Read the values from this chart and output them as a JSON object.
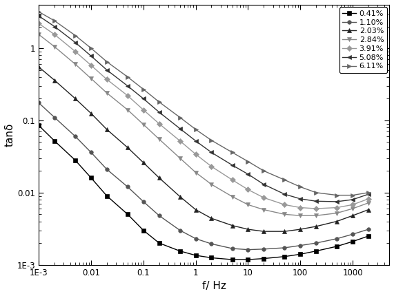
{
  "title": "",
  "xlabel": "f/ Hz",
  "ylabel": "tanδ",
  "xlim": [
    0.001,
    5000
  ],
  "ylim": [
    0.001,
    4
  ],
  "series": [
    {
      "label": "0.41%",
      "color": "#000000",
      "marker": "s",
      "markersize": 4,
      "linewidth": 1.0,
      "x": [
        0.001,
        0.002,
        0.005,
        0.01,
        0.02,
        0.05,
        0.1,
        0.2,
        0.5,
        1,
        2,
        5,
        10,
        20,
        50,
        100,
        200,
        500,
        1000,
        2000
      ],
      "y": [
        0.085,
        0.052,
        0.028,
        0.016,
        0.009,
        0.005,
        0.003,
        0.002,
        0.00155,
        0.00135,
        0.00125,
        0.00118,
        0.00118,
        0.00122,
        0.0013,
        0.0014,
        0.00155,
        0.0018,
        0.0021,
        0.0025
      ]
    },
    {
      "label": "1.10%",
      "color": "#555555",
      "marker": "o",
      "markersize": 4,
      "linewidth": 1.0,
      "x": [
        0.001,
        0.002,
        0.005,
        0.01,
        0.02,
        0.05,
        0.1,
        0.2,
        0.5,
        1,
        2,
        5,
        10,
        20,
        50,
        100,
        200,
        500,
        1000,
        2000
      ],
      "y": [
        0.175,
        0.11,
        0.06,
        0.036,
        0.021,
        0.012,
        0.0075,
        0.0048,
        0.003,
        0.0023,
        0.00195,
        0.00168,
        0.00162,
        0.00165,
        0.00172,
        0.00185,
        0.002,
        0.0023,
        0.00265,
        0.0031
      ]
    },
    {
      "label": "2.03%",
      "color": "#222222",
      "marker": "^",
      "markersize": 4,
      "linewidth": 1.0,
      "x": [
        0.001,
        0.002,
        0.005,
        0.01,
        0.02,
        0.05,
        0.1,
        0.2,
        0.5,
        1,
        2,
        5,
        10,
        20,
        50,
        100,
        200,
        500,
        1000,
        2000
      ],
      "y": [
        0.55,
        0.36,
        0.2,
        0.125,
        0.075,
        0.042,
        0.026,
        0.016,
        0.0088,
        0.0058,
        0.0044,
        0.0035,
        0.0031,
        0.0029,
        0.0029,
        0.0031,
        0.0034,
        0.004,
        0.0048,
        0.0058
      ]
    },
    {
      "label": "2.84%",
      "color": "#888888",
      "marker": "v",
      "markersize": 4,
      "linewidth": 1.0,
      "x": [
        0.001,
        0.002,
        0.005,
        0.01,
        0.02,
        0.05,
        0.1,
        0.2,
        0.5,
        1,
        2,
        5,
        10,
        20,
        50,
        100,
        200,
        500,
        1000,
        2000
      ],
      "y": [
        1.55,
        1.05,
        0.6,
        0.38,
        0.24,
        0.14,
        0.088,
        0.055,
        0.03,
        0.019,
        0.013,
        0.0088,
        0.0068,
        0.0058,
        0.005,
        0.0048,
        0.0048,
        0.0052,
        0.006,
        0.0072
      ]
    },
    {
      "label": "3.91%",
      "color": "#999999",
      "marker": "D",
      "markersize": 4,
      "linewidth": 1.0,
      "x": [
        0.001,
        0.002,
        0.005,
        0.01,
        0.02,
        0.05,
        0.1,
        0.2,
        0.5,
        1,
        2,
        5,
        10,
        20,
        50,
        100,
        200,
        500,
        1000,
        2000
      ],
      "y": [
        2.2,
        1.55,
        0.9,
        0.58,
        0.37,
        0.22,
        0.14,
        0.09,
        0.052,
        0.034,
        0.023,
        0.015,
        0.011,
        0.0085,
        0.0068,
        0.0062,
        0.006,
        0.0062,
        0.0068,
        0.0082
      ]
    },
    {
      "label": "5.08%",
      "color": "#333333",
      "marker": "<",
      "markersize": 4,
      "linewidth": 1.0,
      "x": [
        0.001,
        0.002,
        0.005,
        0.01,
        0.02,
        0.05,
        0.1,
        0.2,
        0.5,
        1,
        2,
        5,
        10,
        20,
        50,
        100,
        200,
        500,
        1000,
        2000
      ],
      "y": [
        2.8,
        2.0,
        1.2,
        0.78,
        0.5,
        0.3,
        0.2,
        0.13,
        0.077,
        0.052,
        0.036,
        0.024,
        0.018,
        0.013,
        0.0095,
        0.0082,
        0.0076,
        0.0075,
        0.008,
        0.0095
      ]
    },
    {
      "label": "6.11%",
      "color": "#666666",
      "marker": ">",
      "markersize": 4,
      "linewidth": 1.0,
      "x": [
        0.001,
        0.002,
        0.005,
        0.01,
        0.02,
        0.05,
        0.1,
        0.2,
        0.5,
        1,
        2,
        5,
        10,
        20,
        50,
        100,
        200,
        500,
        1000,
        2000
      ],
      "y": [
        3.2,
        2.4,
        1.5,
        1.0,
        0.65,
        0.4,
        0.27,
        0.18,
        0.11,
        0.075,
        0.053,
        0.036,
        0.027,
        0.02,
        0.015,
        0.012,
        0.01,
        0.0092,
        0.0092,
        0.01
      ]
    }
  ]
}
